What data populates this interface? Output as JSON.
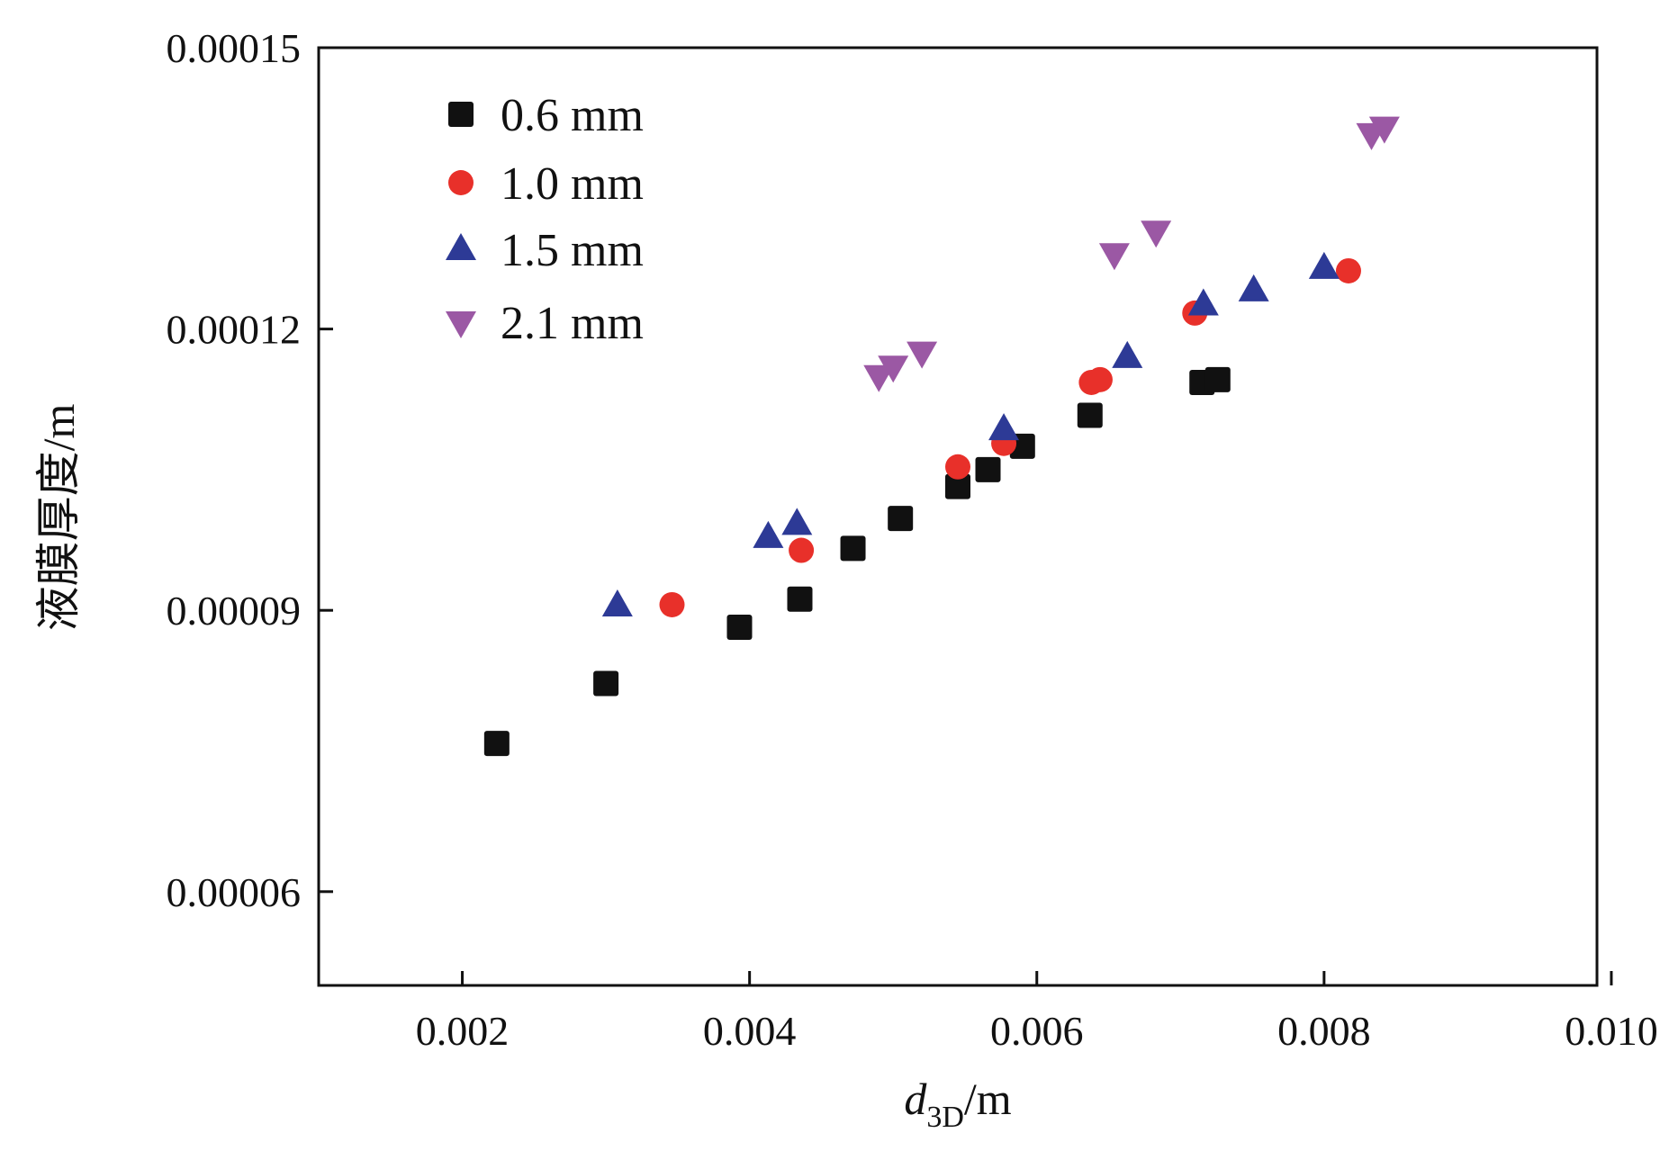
{
  "chart_data": {
    "type": "scatter",
    "title": "",
    "xlabel": {
      "base": "d",
      "sub": "3D",
      "suffix": "/m"
    },
    "ylabel": "液膜厚度/m",
    "xlim": [
      0.001,
      0.0099
    ],
    "ylim": [
      5e-05,
      0.00015
    ],
    "xticks": [
      0.002,
      0.004,
      0.006,
      0.008,
      0.01
    ],
    "xtick_labels": [
      "0.002",
      "0.004",
      "0.006",
      "0.008",
      "0.010"
    ],
    "yticks": [
      6e-05,
      9e-05,
      0.00012,
      0.00015
    ],
    "ytick_labels": [
      "0.00006",
      "0.00009",
      "0.00012",
      "0.00015"
    ],
    "grid": false,
    "legend": "top-left",
    "series": [
      {
        "name": "0.6 mm",
        "marker": "square",
        "color": "#111111",
        "x": [
          0.00224,
          0.003,
          0.00393,
          0.00435,
          0.00472,
          0.00505,
          0.00545,
          0.00566,
          0.0059,
          0.00637,
          0.00715,
          0.00726
        ],
        "y": [
          7.58e-05,
          8.22e-05,
          8.82e-05,
          9.12e-05,
          9.66e-05,
          9.98e-05,
          0.0001032,
          0.000105,
          0.0001075,
          0.0001108,
          0.0001143,
          0.0001146
        ]
      },
      {
        "name": "1.0 mm",
        "marker": "circle",
        "color": "#e8302a",
        "x": [
          0.00346,
          0.00436,
          0.00545,
          0.00577,
          0.00638,
          0.00644,
          0.0071,
          0.00817
        ],
        "y": [
          9.06e-05,
          9.64e-05,
          0.0001053,
          0.0001078,
          0.0001143,
          0.0001146,
          0.0001217,
          0.0001262
        ]
      },
      {
        "name": "1.5 mm",
        "marker": "triangle-up",
        "color": "#2d3a96",
        "x": [
          0.00308,
          0.00413,
          0.00433,
          0.00577,
          0.00663,
          0.00716,
          0.00751,
          0.008
        ],
        "y": [
          9.05e-05,
          9.78e-05,
          9.92e-05,
          0.0001093,
          0.000117,
          0.0001226,
          0.0001241,
          0.0001265
        ]
      },
      {
        "name": "2.1 mm",
        "marker": "triangle-down",
        "color": "#9b58a4",
        "x": [
          0.0049,
          0.005,
          0.0052,
          0.00654,
          0.00683,
          0.00833,
          0.00842
        ],
        "y": [
          0.000115,
          0.000116,
          0.0001175,
          0.000128,
          0.0001304,
          0.0001408,
          0.0001415
        ]
      }
    ]
  }
}
